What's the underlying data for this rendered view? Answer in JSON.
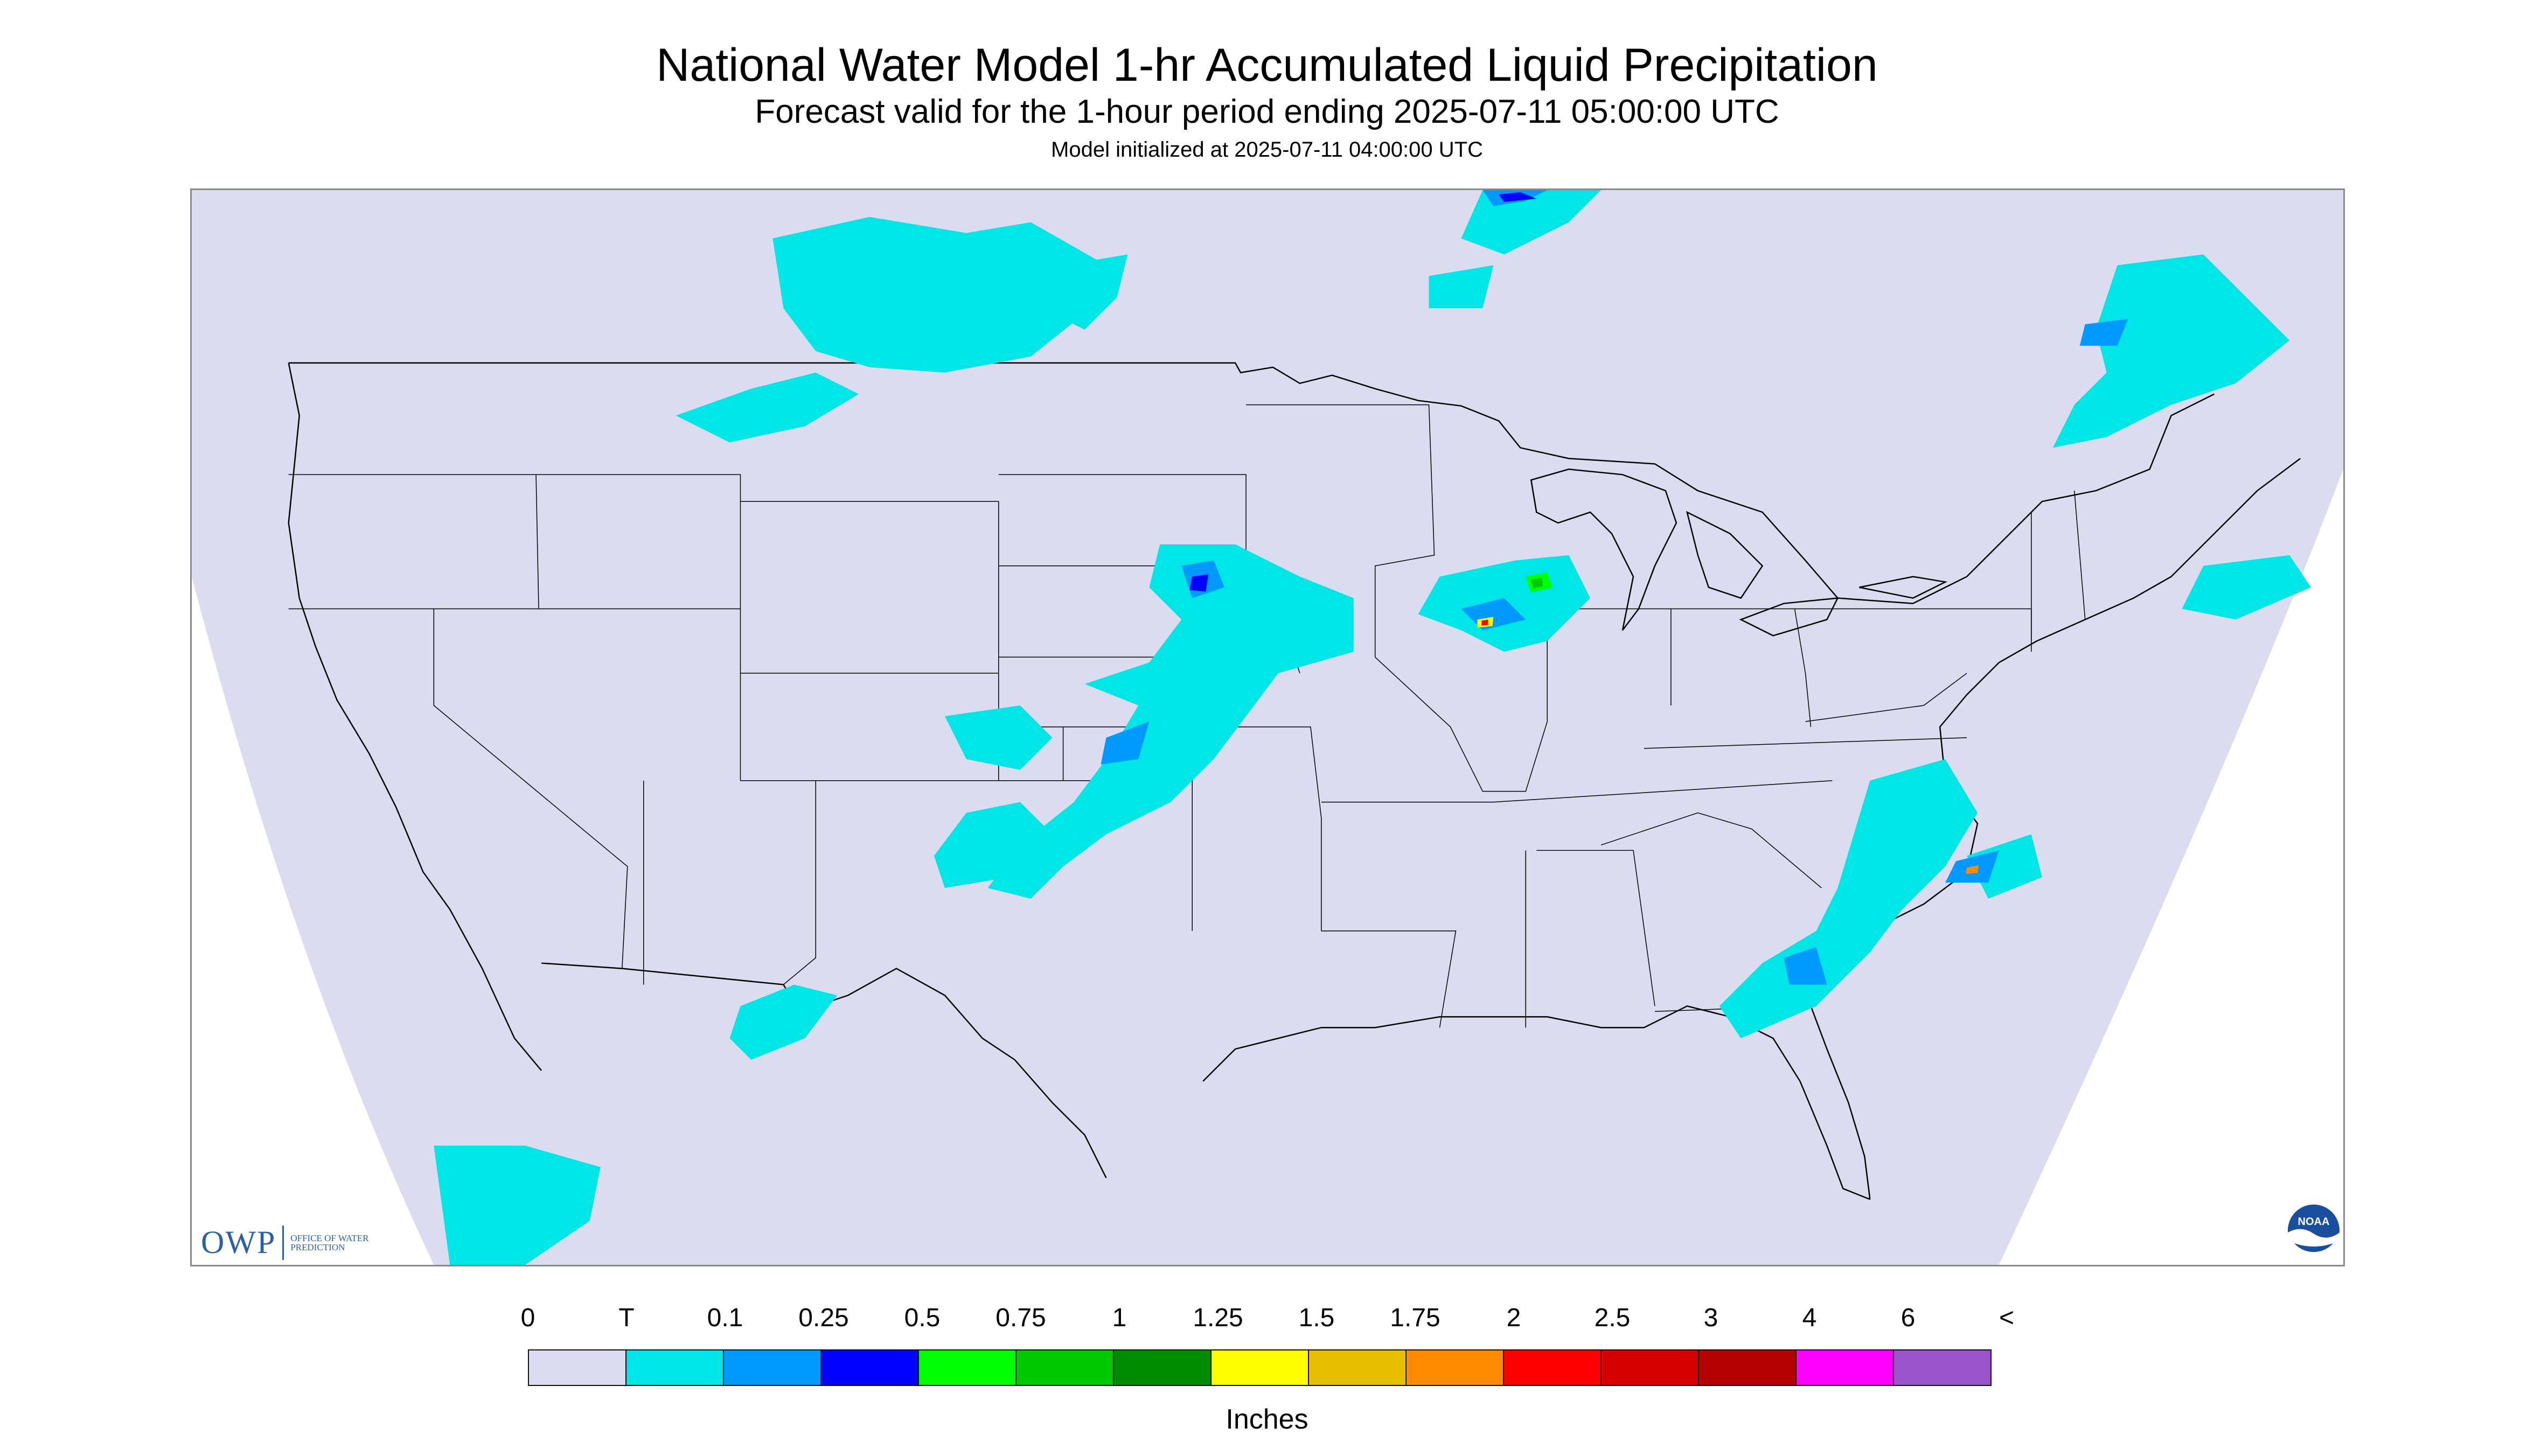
{
  "header": {
    "title": "National Water Model 1-hr Accumulated Liquid Precipitation",
    "subtitle": "Forecast valid for the 1-hour period ending 2025-07-11 05:00:00 UTC",
    "init_line": "Model initialized at 2025-07-11 04:00:00 UTC"
  },
  "logos": {
    "owp_letters": "OWP",
    "owp_subtext": "OFFICE OF WATER PREDICTION",
    "noaa_text": "NOAA"
  },
  "legend": {
    "labels": [
      "0",
      "T",
      "0.1",
      "0.25",
      "0.5",
      "0.75",
      "1",
      "1.25",
      "1.5",
      "1.75",
      "2",
      "2.5",
      "3",
      "4",
      "6",
      "<"
    ],
    "colors": [
      "#dcdcf0",
      "#00e5e5",
      "#0099ff",
      "#0000ff",
      "#00ff00",
      "#00c800",
      "#008c00",
      "#ffff00",
      "#e6c000",
      "#ff8c00",
      "#ff0000",
      "#d90000",
      "#b40000",
      "#ff00ff",
      "#9955c9"
    ],
    "units": "Inches"
  },
  "map": {
    "background_color": "#dcdcf0",
    "outside_color": "#ffffff",
    "boundary_color": "#000000"
  }
}
